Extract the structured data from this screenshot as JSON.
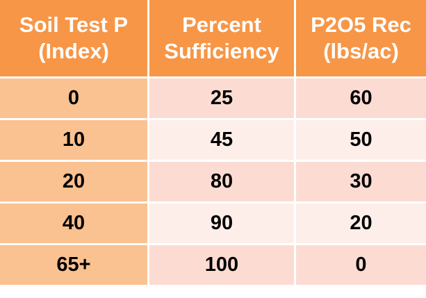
{
  "table": {
    "headers": [
      [
        "Soil Test P",
        "(Index)"
      ],
      [
        "Percent",
        "Sufficiency"
      ],
      [
        "P2O5 Rec",
        "(lbs/ac)"
      ]
    ],
    "rows": [
      [
        "0",
        "25",
        "60"
      ],
      [
        "10",
        "45",
        "50"
      ],
      [
        "20",
        "80",
        "30"
      ],
      [
        "40",
        "90",
        "20"
      ],
      [
        "65+",
        "100",
        "0"
      ]
    ]
  },
  "colors": {
    "header": "#F79646",
    "first_col": "#FAC191",
    "row_odd": "#FCDCD2",
    "row_even": "#FDEEEA"
  }
}
